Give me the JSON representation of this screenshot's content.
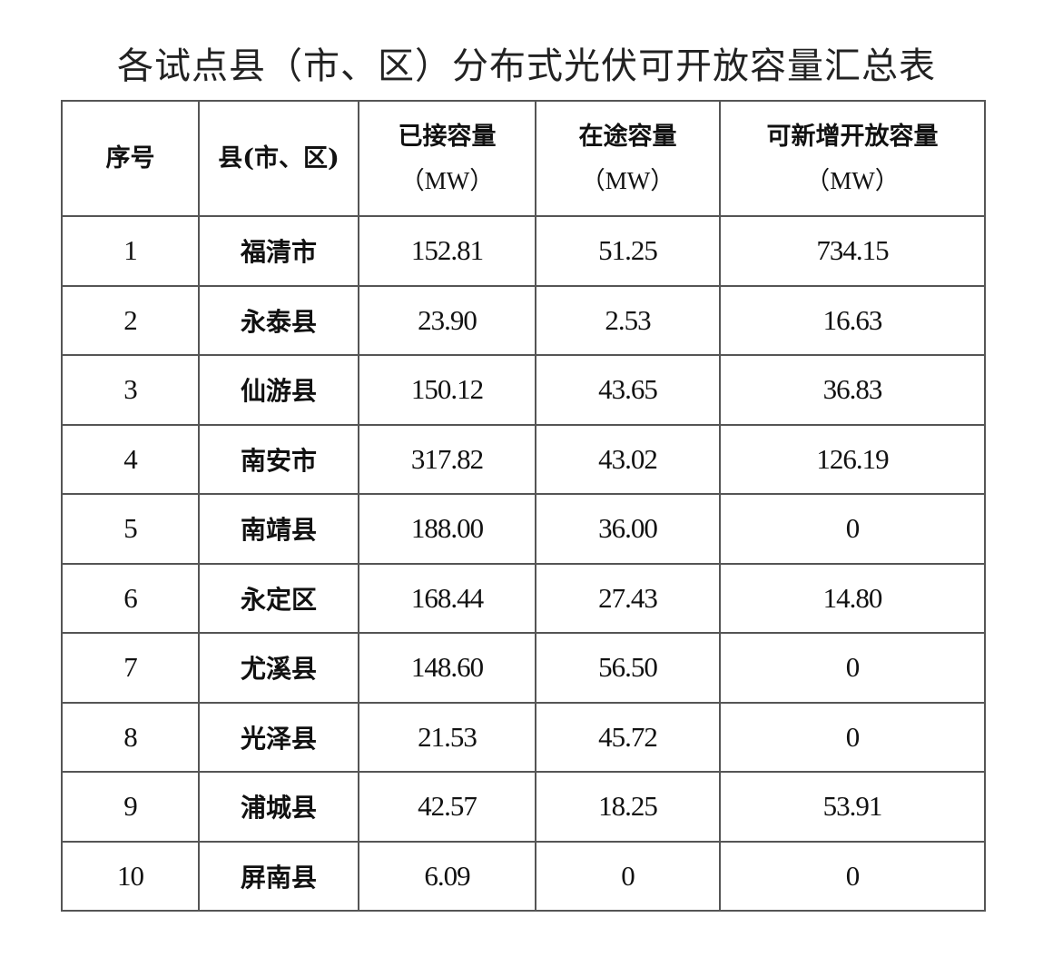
{
  "title": "各试点县（市、区）分布式光伏可开放容量汇总表",
  "headers": [
    {
      "label": "序号",
      "unit": ""
    },
    {
      "label": "县(市、区)",
      "unit": ""
    },
    {
      "label": "已接容量",
      "unit": "（MW）"
    },
    {
      "label": "在途容量",
      "unit": "（MW）"
    },
    {
      "label": "可新增开放容量",
      "unit": "（MW）"
    }
  ],
  "rows": [
    [
      "1",
      "福清市",
      "152.81",
      "51.25",
      "734.15"
    ],
    [
      "2",
      "永泰县",
      "23.90",
      "2.53",
      "16.63"
    ],
    [
      "3",
      "仙游县",
      "150.12",
      "43.65",
      "36.83"
    ],
    [
      "4",
      "南安市",
      "317.82",
      "43.02",
      "126.19"
    ],
    [
      "5",
      "南靖县",
      "188.00",
      "36.00",
      "0"
    ],
    [
      "6",
      "永定区",
      "168.44",
      "27.43",
      "14.80"
    ],
    [
      "7",
      "尤溪县",
      "148.60",
      "56.50",
      "0"
    ],
    [
      "8",
      "光泽县",
      "21.53",
      "45.72",
      "0"
    ],
    [
      "9",
      "浦城县",
      "42.57",
      "18.25",
      "53.91"
    ],
    [
      "10",
      "屏南县",
      "6.09",
      "0",
      "0"
    ]
  ]
}
